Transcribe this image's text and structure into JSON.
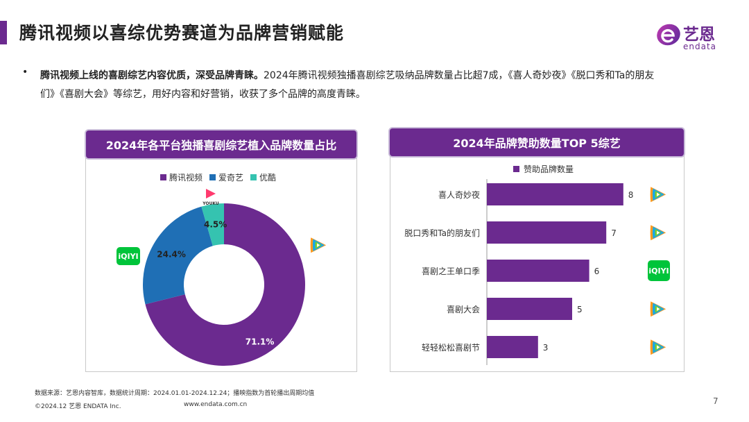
{
  "header": {
    "title": "腾讯视频以喜综优势赛道为品牌营销赋能",
    "logo_cn": "艺恩",
    "logo_en": "endata"
  },
  "intro": {
    "bold": "腾讯视频上线的喜剧综艺内容优质，深受品牌青睐。",
    "text": "2024年腾讯视频独播喜剧综艺吸纳品牌数量占比超7成，《喜人奇妙夜》《脱口秀和Ta的朋友们》《喜剧大会》等综艺，用好内容和好营销，收获了多个品牌的高度青睐。"
  },
  "left_panel": {
    "title": "2024年各平台独播喜剧综艺植入品牌数量占比"
  },
  "right_panel": {
    "title": "2024年品牌赞助数量TOP 5综艺"
  },
  "chart_data": [
    {
      "type": "pie",
      "title": "2024年各平台独播喜剧综艺植入品牌数量占比",
      "legend_position": "top",
      "series": [
        {
          "name": "腾讯视频",
          "value": 71.1,
          "label": "71.1%",
          "color": "#6b2a8f",
          "platform_icon": "tencent-video-icon"
        },
        {
          "name": "爱奇艺",
          "value": 24.4,
          "label": "24.4%",
          "color": "#1f6fb5",
          "platform_icon": "iqiyi-icon"
        },
        {
          "name": "优酷",
          "value": 4.5,
          "label": "4.5%",
          "color": "#35c3b0",
          "platform_icon": "youku-icon"
        }
      ]
    },
    {
      "type": "bar",
      "orientation": "horizontal",
      "title": "2024年品牌赞助数量TOP 5综艺",
      "legend": [
        "赞助品牌数量"
      ],
      "legend_position": "top-left",
      "color": "#6b2a8f",
      "categories": [
        "喜人奇妙夜",
        "脱口秀和Ta的朋友们",
        "喜剧之王单口季",
        "喜剧大会",
        "轻轻松松喜剧节"
      ],
      "values": [
        8,
        7,
        6,
        5,
        3
      ],
      "platform_icons": [
        "tencent-video-icon",
        "tencent-video-icon",
        "iqiyi-icon",
        "tencent-video-icon",
        "tencent-video-icon"
      ],
      "xlim": [
        0,
        9
      ]
    }
  ],
  "icons": {
    "iqiyi_text": "iQIYI",
    "youku_text": "YOUKU"
  },
  "footer": {
    "source": "数据来源：艺恩内容智库，数据统计周期：2024.01.01-2024.12.24；播映指数为首轮播出周期均值",
    "copyright": "©2024.12 艺恩 ENDATA Inc.",
    "website": "www.endata.com.cn",
    "page": "7"
  }
}
